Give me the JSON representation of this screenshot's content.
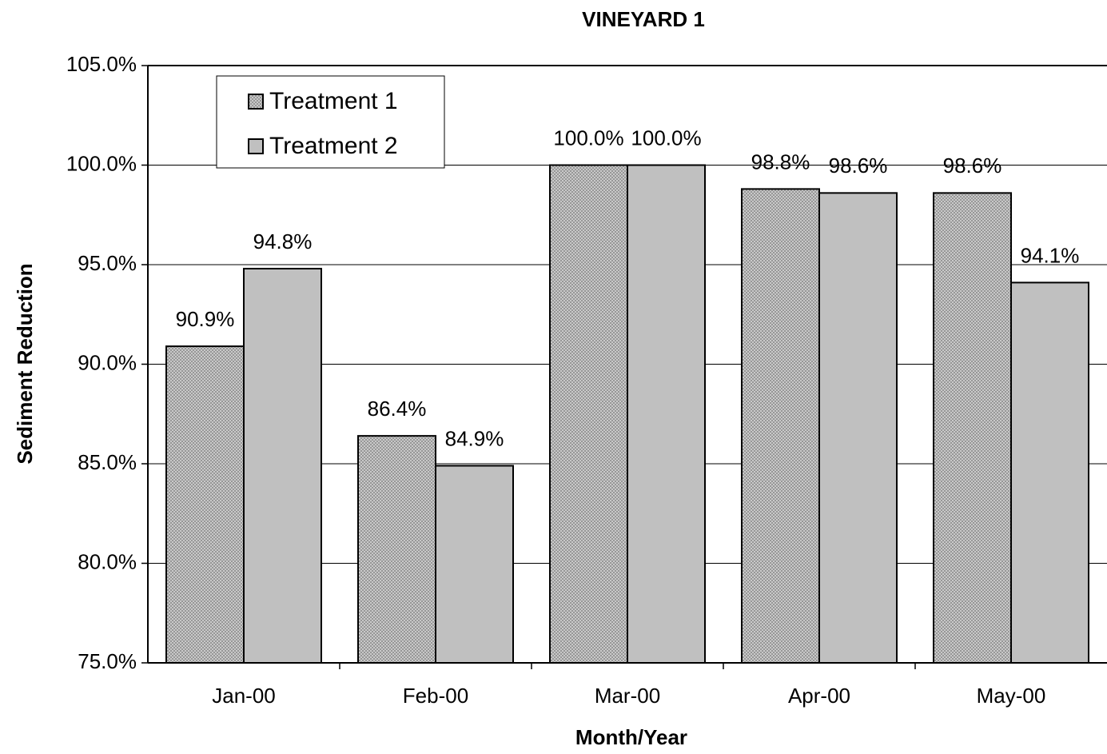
{
  "chart_data": {
    "type": "bar",
    "title": "VINEYARD 1",
    "x_label": "Month/Year",
    "y_label": "Sediment Reduction",
    "categories": [
      "Jan-00",
      "Feb-00",
      "Mar-00",
      "Apr-00",
      "May-00"
    ],
    "series": [
      {
        "name": "Treatment 1",
        "color": "#d0d0d0",
        "hatched": true,
        "values": [
          90.9,
          86.4,
          100.0,
          98.8,
          98.6
        ],
        "value_labels": [
          "90.9%",
          "86.4%",
          "100.0%",
          "98.8%",
          "98.6%"
        ]
      },
      {
        "name": "Treatment 2",
        "color": "#c0c0c0",
        "hatched": false,
        "values": [
          94.8,
          84.9,
          100.0,
          98.6,
          94.1
        ],
        "value_labels": [
          "94.8%",
          "84.9%",
          "100.0%",
          "98.6%",
          "94.1%"
        ]
      }
    ],
    "ylim": [
      75,
      105
    ],
    "yticks": [
      {
        "value": 75,
        "label": "75.0%"
      },
      {
        "value": 80,
        "label": "80.0%"
      },
      {
        "value": 85,
        "label": "85.0%"
      },
      {
        "value": 90,
        "label": "90.0%"
      },
      {
        "value": 95,
        "label": "95.0%"
      },
      {
        "value": 100,
        "label": "100.0%"
      },
      {
        "value": 105,
        "label": "105.0%"
      }
    ],
    "grid": true,
    "legend": "upper left"
  }
}
